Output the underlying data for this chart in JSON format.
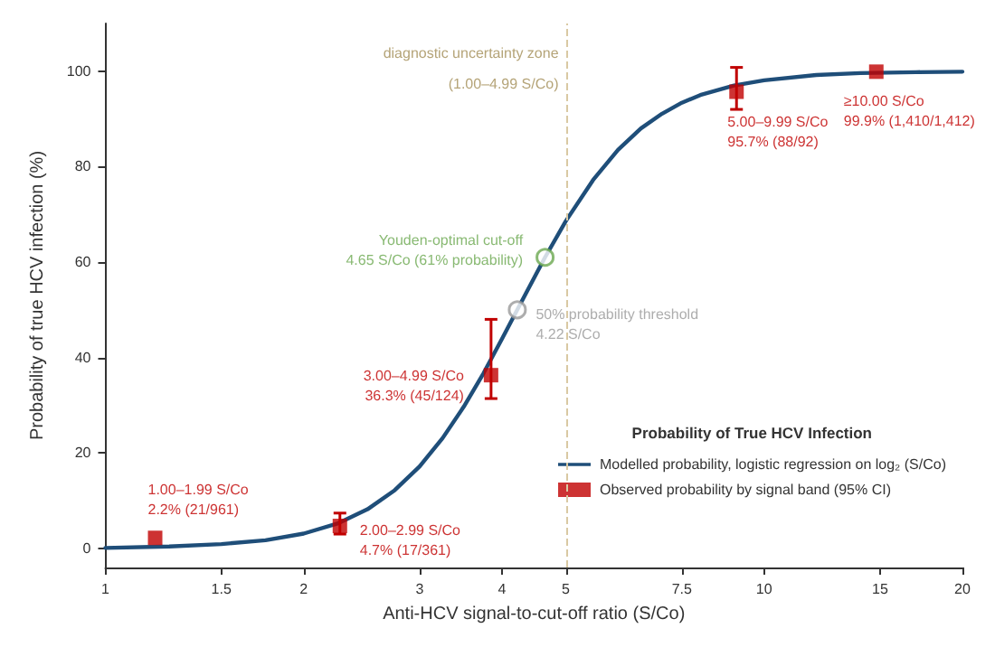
{
  "chart_data": {
    "type": "line",
    "xlabel": "Anti-HCV signal-to-cut-off ratio (S/Co)",
    "ylabel": "Probability of true HCV infection (%)",
    "legend_title": "Probability of True HCV Infection",
    "log": "x",
    "xlim": [
      1,
      20
    ],
    "xticks": [
      1,
      1.5,
      2,
      3,
      4,
      5,
      7.5,
      10,
      15,
      20
    ],
    "ylim": [
      -4,
      110
    ],
    "yticks": [
      0,
      20,
      40,
      60,
      80,
      100
    ],
    "grid": false,
    "legend": "bottom right",
    "series": [
      {
        "name": "Modelled probability, logistic regression on log₂ (S/Co)",
        "color": "#1f4e79",
        "marker": "none",
        "line_style": "solid",
        "x": [
          1,
          1.25,
          1.5,
          1.75,
          2,
          2.25,
          2.5,
          2.75,
          3,
          3.25,
          3.5,
          3.75,
          4,
          4.22,
          4.5,
          4.65,
          5,
          5.5,
          6,
          6.5,
          7,
          7.5,
          8,
          9,
          10,
          12,
          14,
          17,
          20
        ],
        "values": [
          0.1,
          0.4,
          0.9,
          1.7,
          3.1,
          5.2,
          8.2,
          12.2,
          17.2,
          23.1,
          29.7,
          36.7,
          43.9,
          50,
          57.3,
          61,
          68.6,
          77.2,
          83.5,
          88,
          91.1,
          93.4,
          95,
          97,
          98.1,
          99.2,
          99.6,
          99.8,
          99.9
        ]
      },
      {
        "type": "scatter",
        "name": "Observed probability by signal band (95% CI)",
        "color": "#c00000",
        "marker": "square",
        "x": [
          1.19,
          2.27,
          3.85,
          9.08,
          14.8
        ],
        "values": [
          2.2,
          4.7,
          36.3,
          95.7,
          99.9
        ],
        "errors": [
          null,
          [
            3.0,
            7.4
          ],
          [
            31.4,
            48
          ],
          [
            92,
            100.8
          ],
          null
        ],
        "value_labels": [
          "1.00–1.99 S/Co\n2.2% (21/961)",
          "2.00–2.99 S/Co\n4.7% (17/361)",
          "3.00–4.99 S/Co\n36.3% (45/124)",
          "5.00–9.99 S/Co\n95.7% (88/92)",
          "≥10.00 S/Co\n99.9% (1,410/1,412)"
        ]
      },
      {
        "type": "scatter",
        "color": "#6aa84f",
        "marker": "circle",
        "x": [
          4.65
        ],
        "values": [
          61
        ],
        "value_labels": [
          "Youden-optimal cut-off\n4.65 S/Co (61% probability)"
        ]
      },
      {
        "type": "scatter",
        "color": "#999999",
        "marker": "circle",
        "x": [
          4.22
        ],
        "values": [
          50
        ],
        "value_labels": [
          "50% probability threshold\n4.22 S/Co"
        ]
      }
    ],
    "ref_lines": [
      {
        "axis": "x",
        "value": 5,
        "label": "diagnostic uncertainty zone\n(1.00–4.99 S/Co)",
        "color": "#d9c9a3",
        "line_style": "dashed"
      }
    ]
  }
}
